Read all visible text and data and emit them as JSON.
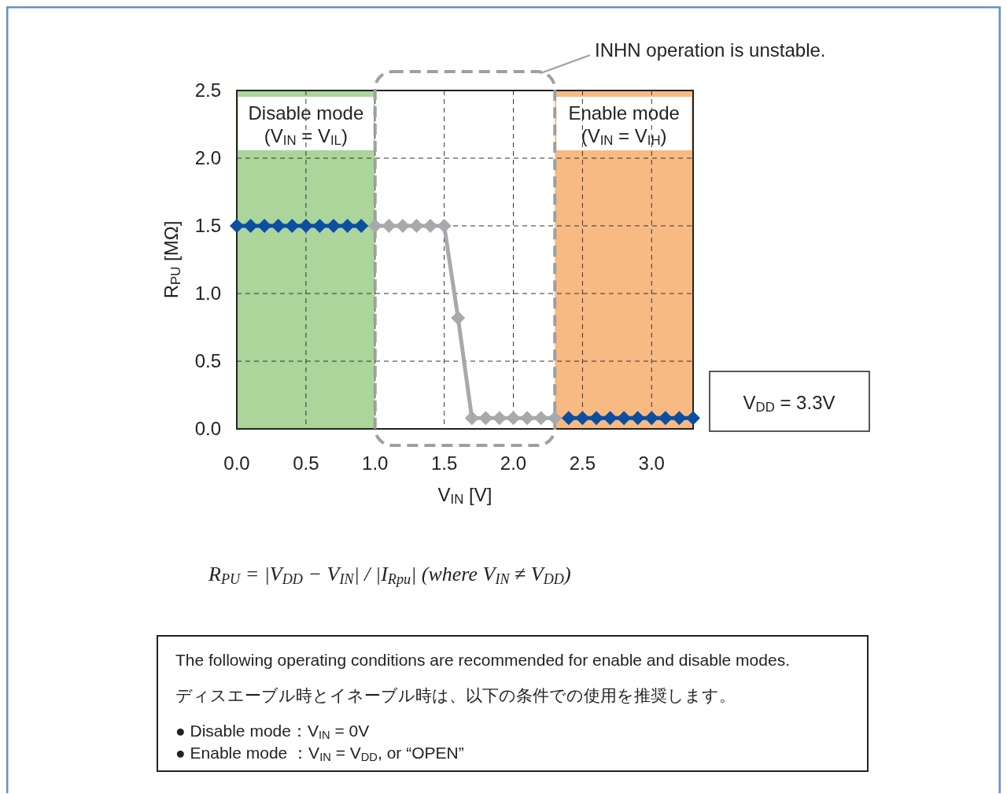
{
  "chart_data": {
    "type": "line",
    "xlabel": "V$_{IN}$ [V]",
    "ylabel": "R$_{PU}$ [MΩ]",
    "xlim": [
      0,
      3.3
    ],
    "xticks": [
      {
        "value": 0,
        "label": "0.0"
      },
      0.5,
      {
        "value": 1,
        "label": "1.0"
      },
      1.5,
      {
        "value": 2,
        "label": "2.0"
      },
      2.5,
      {
        "value": 3,
        "label": "3.0"
      }
    ],
    "ylim": [
      0,
      2.5
    ],
    "yticks": [
      {
        "value": 0,
        "label": "0.0"
      },
      0.5,
      {
        "value": 1,
        "label": "1.0"
      },
      1.5,
      {
        "value": 2,
        "label": "2.0"
      },
      2.5
    ],
    "grid": true,
    "marker": "diamond",
    "line_style": "solid",
    "series": [
      {
        "color": "#0b4ea2",
        "x": [
          0,
          0.1,
          0.2,
          0.3,
          0.4,
          0.5,
          0.6,
          0.7,
          0.8,
          0.9
        ],
        "values": [
          1.5,
          1.5,
          1.5,
          1.5,
          1.5,
          1.5,
          1.5,
          1.5,
          1.5,
          1.5
        ]
      },
      {
        "color": "#a7a9ac",
        "x": [
          1.0,
          1.1,
          1.2,
          1.3,
          1.4,
          1.5,
          1.6,
          1.7,
          1.8,
          1.9,
          2.0,
          2.1,
          2.2,
          2.3
        ],
        "values": [
          1.5,
          1.5,
          1.5,
          1.5,
          1.5,
          1.5,
          0.82,
          0.08,
          0.08,
          0.08,
          0.08,
          0.08,
          0.08,
          0.08
        ]
      },
      {
        "color": "#0b4ea2",
        "x": [
          2.4,
          2.5,
          2.6,
          2.7,
          2.8,
          2.9,
          3.0,
          3.1,
          3.2,
          3.3
        ],
        "values": [
          0.08,
          0.08,
          0.08,
          0.08,
          0.08,
          0.08,
          0.08,
          0.08,
          0.08,
          0.08
        ]
      }
    ],
    "bands": [
      {
        "axis": "x",
        "from": 0,
        "to": 1.0,
        "label": "Disable mode\n(V$_{IN}$ = V$_{IL}$)",
        "color": "#abd59b"
      },
      {
        "axis": "x",
        "from": 2.3,
        "to": 3.3,
        "label": "Enable mode\n(V$_{IN}$ = V$_{IH}$)",
        "color": "#f8ba83"
      }
    ],
    "annotations": [
      "INHN operation is unstable.",
      "V$_{DD}$ = 3.3V",
      "R$_{PU}$ = |V$_{DD}$ − V$_{IN}$| / |I$_{Rpu}$|   (where V$_{IN}$ ≠ V$_{DD}$)",
      "The following operating conditions are recommended for enable and disable modes.",
      "ディスエーブル時とイネーブル時は、以下の条件での使用を推奨します。",
      "● Disable mode：V$_{IN}$ = 0V",
      "● Enable mode ：V$_{IN}$ = V$_{DD}$, or “OPEN”"
    ]
  }
}
